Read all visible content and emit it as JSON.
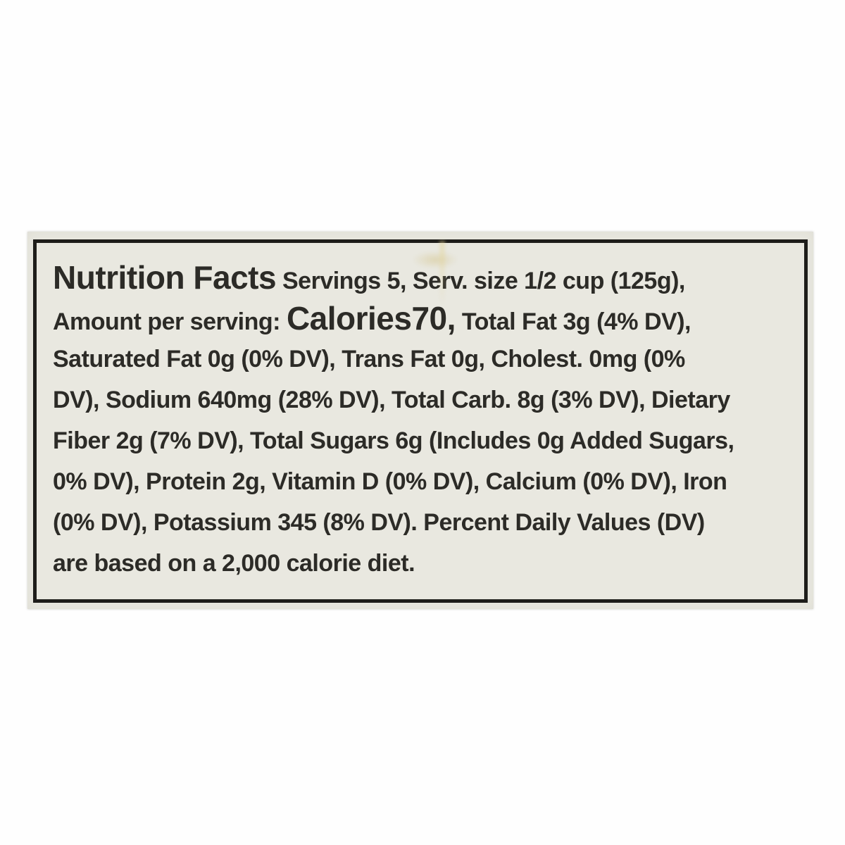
{
  "colors": {
    "page_background": "#fefefe",
    "sticker_background": "#e9e8e0",
    "border": "#1e1d1a",
    "text": "#2c2b27"
  },
  "label": {
    "lines": [
      {
        "segments": [
          {
            "style": "xl",
            "text": "Nutrition Facts"
          },
          {
            "style": "md",
            "text": " Servings 5, Serv. size 1/2 cup (125g),"
          }
        ]
      },
      {
        "segments": [
          {
            "style": "md",
            "text": "Amount per serving: "
          },
          {
            "style": "xl",
            "text": "Calories70,"
          },
          {
            "style": "md",
            "text": " Total Fat 3g (4% DV),"
          }
        ]
      },
      {
        "segments": [
          {
            "style": "md",
            "text": "Saturated Fat 0g (0% DV), Trans Fat 0g, Cholest. 0mg (0%"
          }
        ]
      },
      {
        "segments": [
          {
            "style": "md",
            "text": "DV), Sodium 640mg (28% DV), Total Carb. 8g (3% DV), Dietary"
          }
        ]
      },
      {
        "segments": [
          {
            "style": "md",
            "text": "Fiber 2g (7% DV), Total Sugars 6g (Includes 0g Added Sugars,"
          }
        ]
      },
      {
        "segments": [
          {
            "style": "md",
            "text": "0% DV), Protein 2g, Vitamin D (0% DV), Calcium (0% DV), Iron"
          }
        ]
      },
      {
        "segments": [
          {
            "style": "md",
            "text": "(0% DV), Potassium 345 (8% DV). Percent Daily Values (DV)"
          }
        ]
      },
      {
        "segments": [
          {
            "style": "md",
            "text": "are based on a 2,000 calorie diet."
          }
        ]
      }
    ],
    "facts": {
      "title": "Nutrition Facts",
      "servings": "5",
      "serving_size": "1/2 cup (125g)",
      "amount_per_serving_label": "Amount per serving:",
      "calories": "70",
      "total_fat": "3g (4% DV)",
      "saturated_fat": "0g (0% DV)",
      "trans_fat": "0g",
      "cholesterol": "0mg (0% DV)",
      "sodium": "640mg (28% DV)",
      "total_carbohydrate": "8g (3% DV)",
      "dietary_fiber": "2g (7% DV)",
      "total_sugars": "6g",
      "added_sugars": "0g (0% DV)",
      "protein": "2g",
      "vitamin_d": "(0% DV)",
      "calcium": "(0% DV)",
      "iron": "(0% DV)",
      "potassium": "345 (8% DV)",
      "footnote": "Percent Daily Values (DV) are based on a 2,000 calorie diet."
    }
  }
}
